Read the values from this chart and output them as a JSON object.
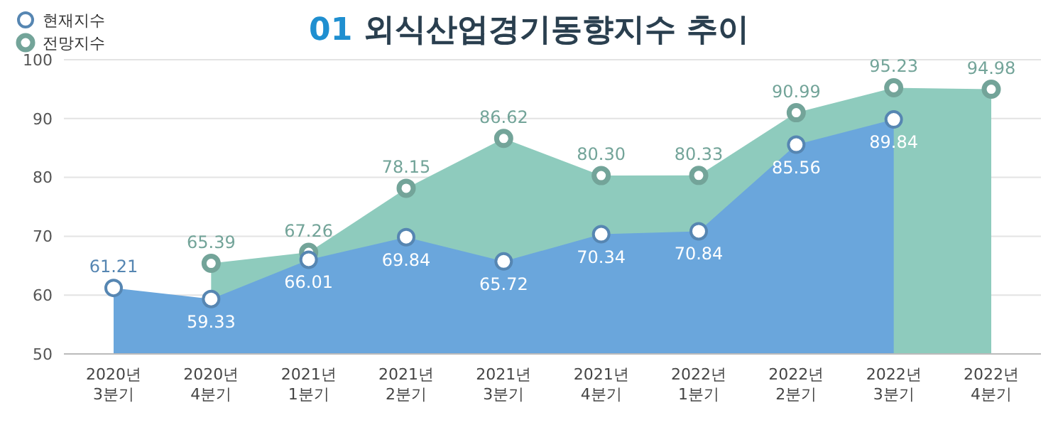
{
  "chart_data": {
    "type": "area",
    "title": "01 외식산업경기동향지수 추이",
    "categories": [
      "2020년 3분기",
      "2020년 4분기",
      "2021년 1분기",
      "2021년 2분기",
      "2021년 3분기",
      "2021년 4분기",
      "2022년 1분기",
      "2022년 2분기",
      "2022년 3분기",
      "2022년 4분기"
    ],
    "series": [
      {
        "name": "전망지수",
        "color": "#8ecbbd",
        "values": [
          null,
          65.39,
          67.26,
          78.15,
          86.62,
          80.3,
          80.33,
          90.99,
          95.23,
          94.98
        ],
        "value_labels": [
          null,
          "65.39",
          "67.26",
          "78.15",
          "86.62",
          "80.30",
          "80.33",
          "90.99",
          "95.23",
          "94.98"
        ]
      },
      {
        "name": "현재지수",
        "color": "#6aa6dc",
        "values": [
          61.21,
          59.33,
          66.01,
          69.84,
          65.72,
          70.34,
          70.84,
          85.56,
          89.84,
          null
        ],
        "value_labels": [
          "61.21",
          "59.33",
          "66.01",
          "69.84",
          "65.72",
          "70.34",
          "70.84",
          "85.56",
          "89.84",
          null
        ]
      }
    ],
    "ylim": [
      50,
      100
    ],
    "yticks": [
      50,
      60,
      70,
      80,
      90,
      100
    ],
    "grid": "y",
    "legend": "top left",
    "marker": "circle"
  }
}
